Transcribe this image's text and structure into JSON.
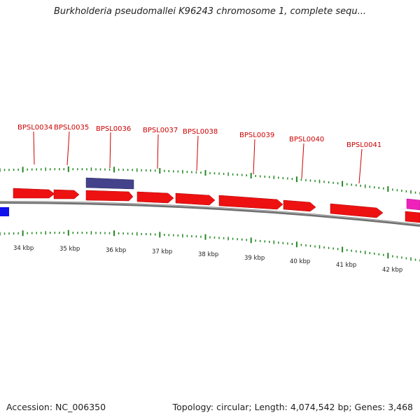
{
  "title": "Burkholderia pseudomallei K96243 chromosome 1, complete sequ...",
  "footer": {
    "accession": "Accession: NC_006350",
    "summary": "Topology: circular; Length: 4,074,542 bp; Genes: 3,468"
  },
  "gene_labels": [
    "BPSL0034",
    "BPSL0035",
    "BPSL0036",
    "BPSL0037",
    "BPSL0038",
    "BPSL0039",
    "BPSL0040",
    "BPSL0041"
  ],
  "scale_labels": [
    "34 kbp",
    "35 kbp",
    "36 kbp",
    "37 kbp",
    "38 kbp",
    "39 kbp",
    "40 kbp",
    "41 kbp",
    "42 kbp"
  ],
  "colors": {
    "gene_red": "#ee1111",
    "gene_dark": "#44428a",
    "gene_blue": "#1111ee",
    "gene_magenta": "#ee22bb",
    "tick_green": "#228822",
    "backbone": "#888888",
    "label_red": "#cc0000"
  }
}
